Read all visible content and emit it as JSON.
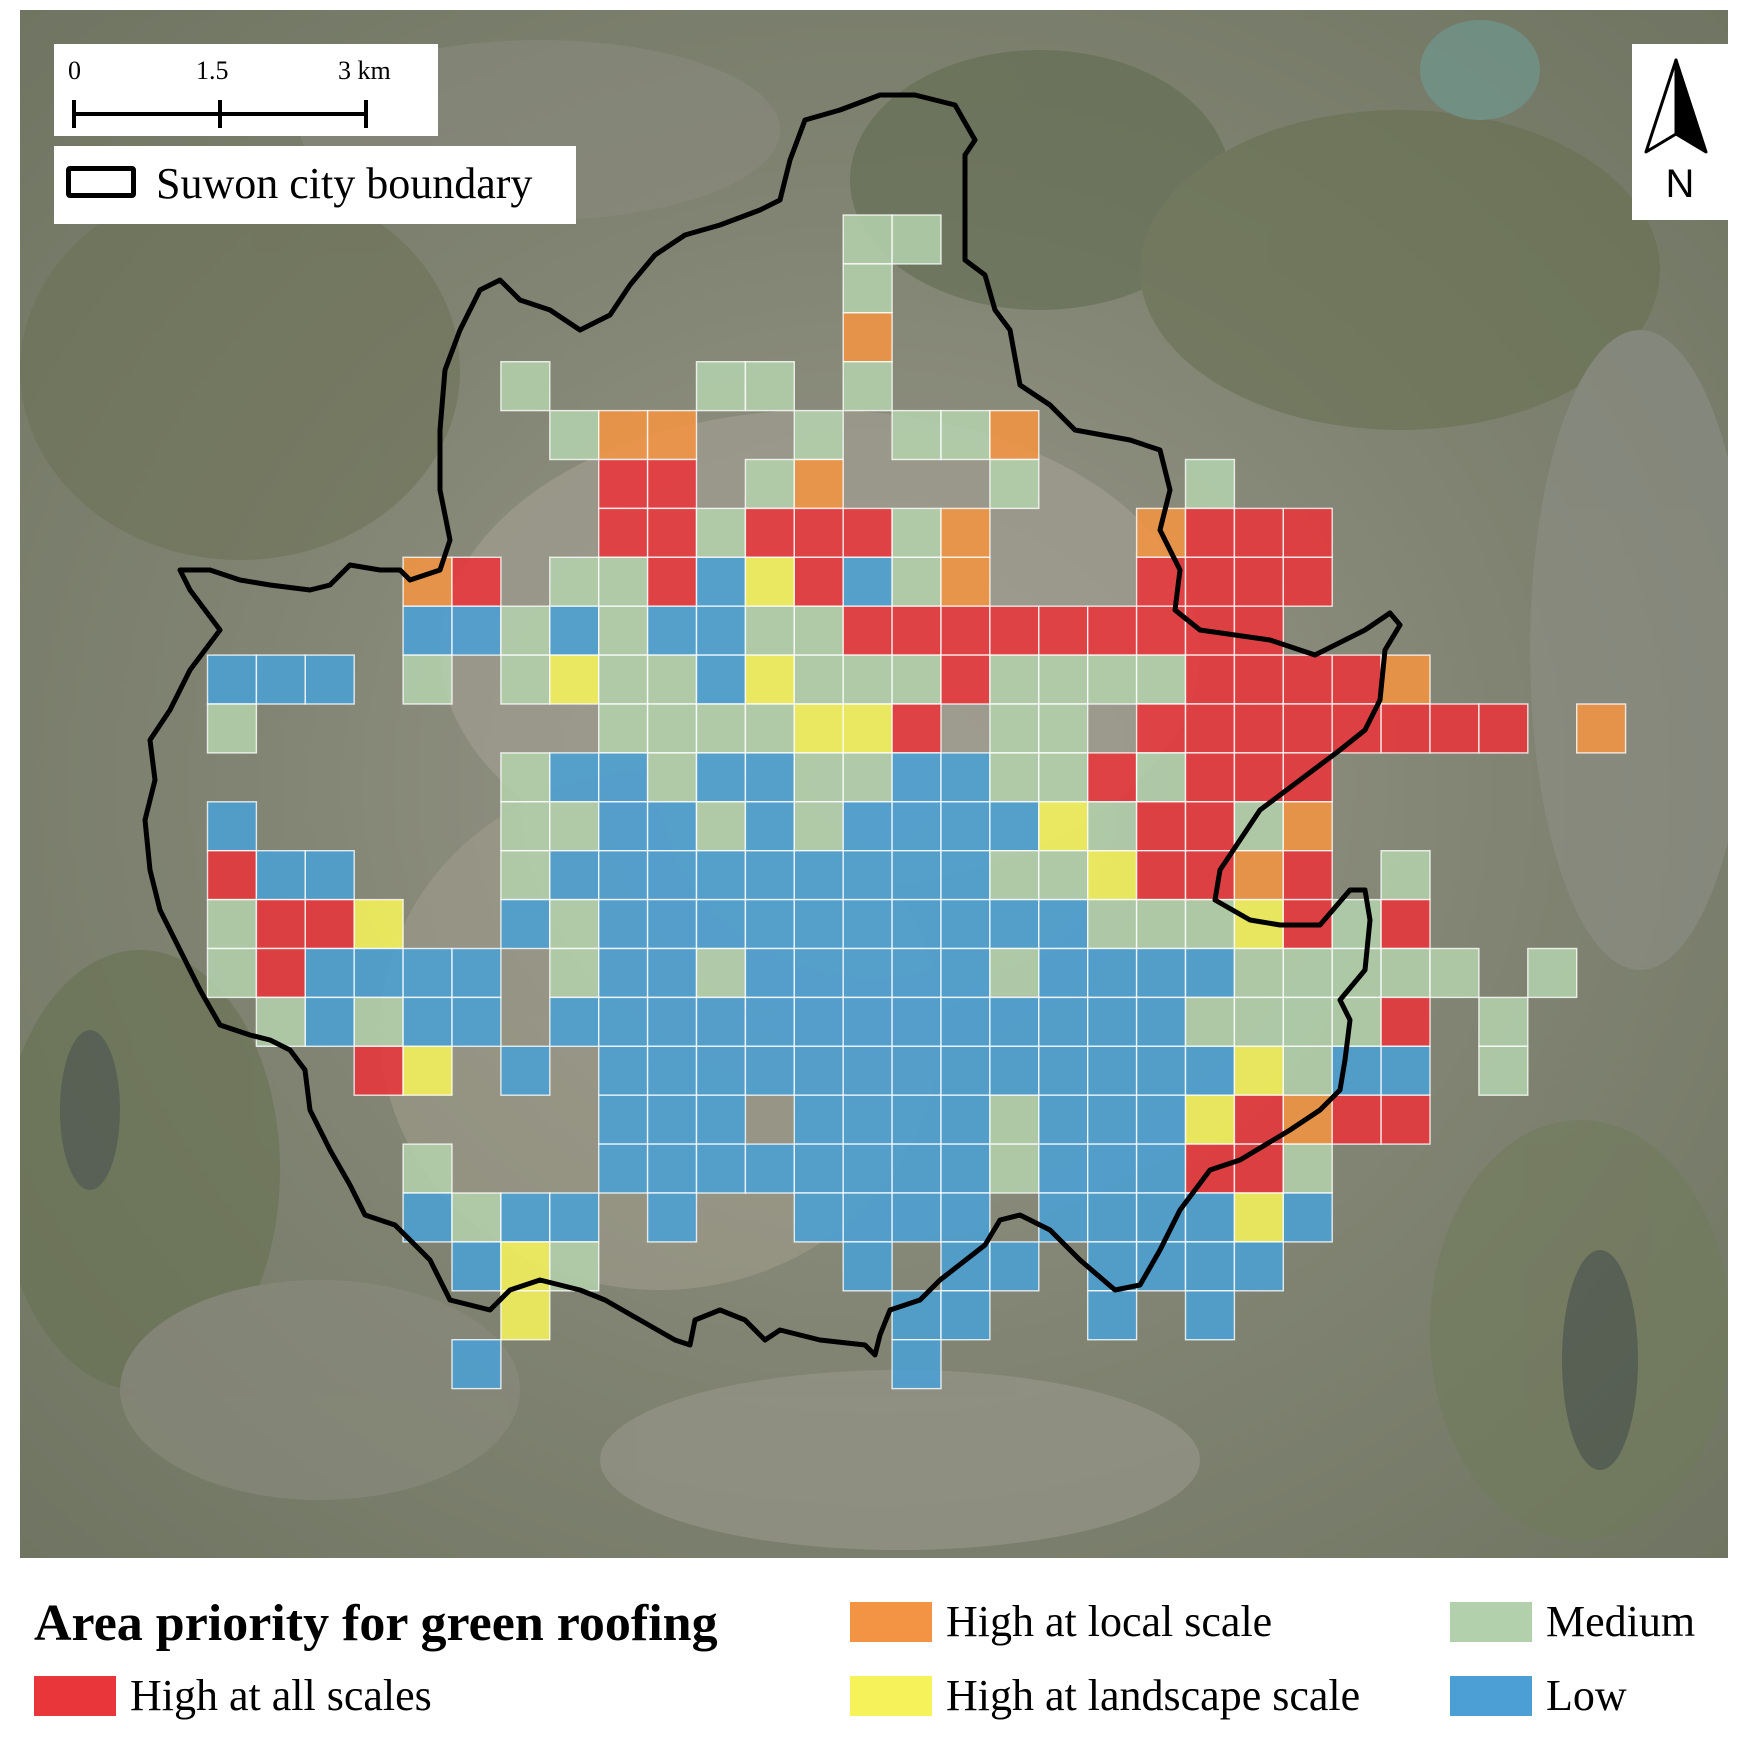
{
  "scale_bar": {
    "labels": [
      "0",
      "1.5",
      "3 km"
    ]
  },
  "boundary_legend": {
    "label": "Suwon city boundary"
  },
  "north_arrow": {
    "label": "N",
    "icon": "north-arrow-icon"
  },
  "legend": {
    "title": "Area priority for green roofing",
    "items": [
      {
        "key": "all",
        "label": "High at all scales",
        "color": "#e8363a"
      },
      {
        "key": "local",
        "label": "High at local scale",
        "color": "#f29443"
      },
      {
        "key": "landscape",
        "label": "High at landscape scale",
        "color": "#f5f25a"
      },
      {
        "key": "medium",
        "label": "Medium",
        "color": "#b3d0ac"
      },
      {
        "key": "low",
        "label": "Low",
        "color": "#4b9fd4"
      }
    ]
  },
  "grid": {
    "codes": {
      "R": "all",
      "O": "local",
      "Y": "landscape",
      "M": "medium",
      "L": "low"
    },
    "rows": [
      ".............MM...............",
      ".............M................",
      ".............O................",
      "......M...MM.M................",
      ".......MOO..M.MMO.............",
      "........RR.MO...M...M.........",
      "........RRMRRRMO...ORRR.......",
      "....OR.MMRLYRLMO...RRRR.......",
      "....LLMLMLLMMRRRRRRRRR........",
      "LLL.M.MYMMLYMMMRMMMMRRRRO.....",
      "M.......MMMMYYR.MM.RRRRRRRR.O.",
      "......MLLMLLMMLLMMRMRRR.......",
      "L.....MMLLMLMLLLLYMRRMO.......",
      "RLL...MLLLLLLLLLMMYRROR.M.....",
      "MRRY..LMLLLLLLLLLLMMMYRMR.....",
      "MRLLLL.MLLMLLLLLMLLLLMMMMM.M..",
      ".MLMLL.LLLLLLLLLLLLLMMMMR.M...",
      "...RY.L.LLLLLLLLLLLLLYMLL.M...",
      "........LLL.LLLLMLLLYRORR.....",
      "....M...LLLLLLLLMLLLRRM.......",
      "....LMLL.L..LLLL.LLLLYL.......",
      ".....LYM.....L.LL.LLLL........",
      "......Y.......LL..L.L.........",
      ".....L........L..............."
    ]
  }
}
